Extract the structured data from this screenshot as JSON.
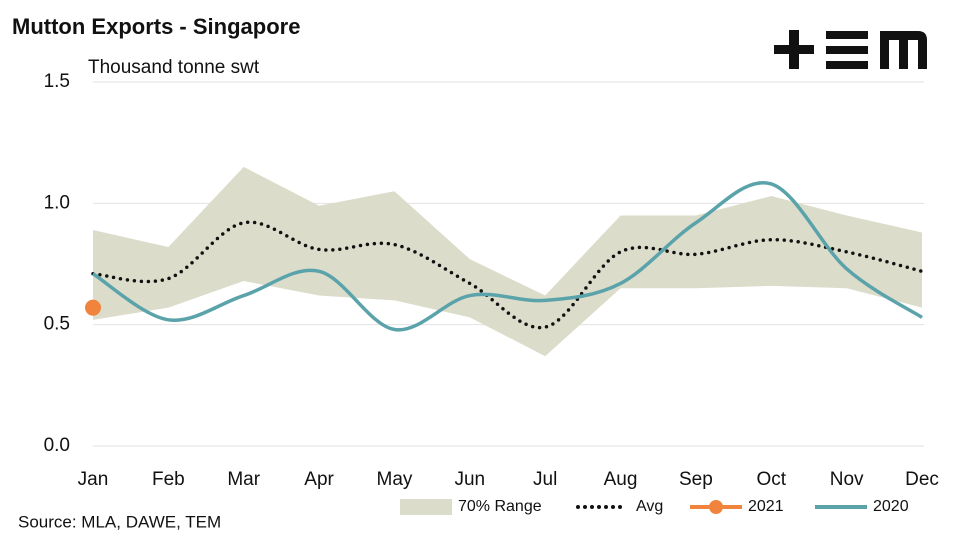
{
  "chart_data": {
    "type": "line",
    "title": "Mutton Exports - Singapore",
    "y_label": "Thousand tonne swt",
    "source": "Source: MLA, DAWE, TEM",
    "categories": [
      "Jan",
      "Feb",
      "Mar",
      "Apr",
      "May",
      "Jun",
      "Jul",
      "Aug",
      "Sep",
      "Oct",
      "Nov",
      "Dec"
    ],
    "ylim": [
      0,
      1.5
    ],
    "yticks": [
      {
        "value": 0,
        "label": "0.0"
      },
      0.5,
      {
        "value": 1,
        "label": "1.0"
      },
      1.5
    ],
    "grid": true,
    "legend": "bottom-right",
    "series": [
      {
        "name": "70% Range",
        "color": "#dcdccb",
        "style": "band",
        "high": [
          0.89,
          0.82,
          1.15,
          0.99,
          1.05,
          0.77,
          0.62,
          0.95,
          0.95,
          1.03,
          0.95,
          0.88
        ],
        "low": [
          0.52,
          0.57,
          0.68,
          0.62,
          0.6,
          0.53,
          0.37,
          0.65,
          0.65,
          0.66,
          0.65,
          0.57
        ]
      },
      {
        "name": "Avg",
        "color": "#111111",
        "style": "dotted",
        "values": [
          0.71,
          0.69,
          0.92,
          0.81,
          0.83,
          0.67,
          0.49,
          0.8,
          0.79,
          0.85,
          0.8,
          0.72
        ]
      },
      {
        "name": "2021",
        "color": "#f0843c",
        "style": "point",
        "values": [
          0.57,
          null,
          null,
          null,
          null,
          null,
          null,
          null,
          null,
          null,
          null,
          null
        ]
      },
      {
        "name": "2020",
        "color": "#5ba3aa",
        "style": "solid",
        "values": [
          0.71,
          0.52,
          0.62,
          0.72,
          0.48,
          0.62,
          0.6,
          0.67,
          0.92,
          1.08,
          0.73,
          0.53
        ]
      }
    ]
  }
}
